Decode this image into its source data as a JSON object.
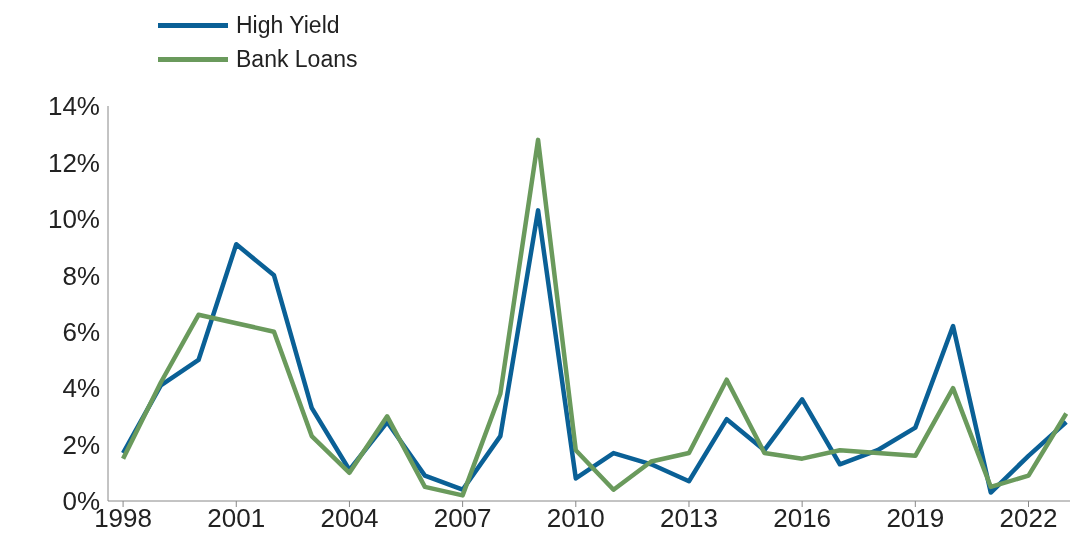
{
  "chart_data": {
    "type": "line",
    "x": [
      1998,
      1999,
      2000,
      2001,
      2002,
      2003,
      2004,
      2005,
      2006,
      2007,
      2008,
      2009,
      2010,
      2011,
      2012,
      2013,
      2014,
      2015,
      2016,
      2017,
      2018,
      2019,
      2020,
      2021,
      2022,
      2023
    ],
    "series": [
      {
        "name": "High Yield",
        "color": "#0a6096",
        "values": [
          1.7,
          4.1,
          5.0,
          9.1,
          8.0,
          3.3,
          1.1,
          2.8,
          0.9,
          0.4,
          2.3,
          10.3,
          0.8,
          1.7,
          1.3,
          0.7,
          2.9,
          1.8,
          3.6,
          1.3,
          1.8,
          2.6,
          6.2,
          0.3,
          1.6,
          2.8
        ]
      },
      {
        "name": "Bank Loans",
        "color": "#6a9a5c",
        "values": [
          1.5,
          4.2,
          6.6,
          6.3,
          6.0,
          2.3,
          1.0,
          3.0,
          0.5,
          0.2,
          3.8,
          12.8,
          1.8,
          0.4,
          1.4,
          1.7,
          4.3,
          1.7,
          1.5,
          1.8,
          1.7,
          1.6,
          4.0,
          0.5,
          0.9,
          3.1
        ]
      }
    ],
    "xlim": [
      1997.6,
      2023.1
    ],
    "xticks": [
      1998,
      2001,
      2004,
      2007,
      2010,
      2013,
      2016,
      2019,
      2022
    ],
    "ylim": [
      0,
      14
    ],
    "yticks": [
      {
        "value": 0,
        "label": "0%"
      },
      {
        "value": 2,
        "label": "2%"
      },
      {
        "value": 4,
        "label": "4%"
      },
      {
        "value": 6,
        "label": "6%"
      },
      {
        "value": 8,
        "label": "8%"
      },
      {
        "value": 10,
        "label": "10%"
      },
      {
        "value": 12,
        "label": "12%"
      },
      {
        "value": 14,
        "label": "14%"
      }
    ],
    "grid": false,
    "legend": "top left",
    "marker": "none",
    "line_style": "solid"
  }
}
